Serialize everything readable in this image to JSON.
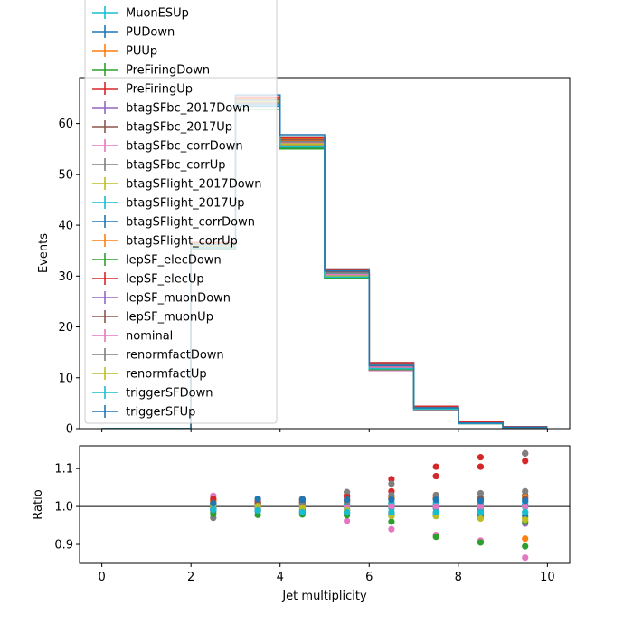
{
  "chart_data": [
    {
      "type": "line",
      "panel": "main",
      "drawstyle": "steps-post",
      "ylabel": "Events",
      "xlim": [
        -0.5,
        10.5
      ],
      "ylim": [
        0,
        69
      ],
      "yticks": [
        0,
        10,
        20,
        30,
        40,
        50,
        60
      ],
      "grid": false,
      "legend": "upper-left",
      "bin_edges": [
        0,
        1,
        2,
        3,
        4,
        5,
        6,
        7,
        8,
        9,
        10
      ],
      "series": [
        {
          "name": "MuonESUp",
          "color": "#17becf",
          "values": [
            0,
            0,
            36.0,
            64.3,
            56.0,
            30.2,
            12.0,
            4.0,
            1.1,
            0.3
          ]
        },
        {
          "name": "PUDown",
          "color": "#1f77b4",
          "values": [
            0,
            0,
            35.6,
            64.4,
            56.3,
            30.4,
            12.2,
            4.0,
            1.1,
            0.3
          ]
        },
        {
          "name": "PUUp",
          "color": "#ff7f0e",
          "values": [
            0,
            0,
            36.2,
            64.8,
            56.6,
            30.7,
            12.4,
            4.1,
            1.1,
            0.3
          ]
        },
        {
          "name": "PreFiringDown",
          "color": "#2ca02c",
          "values": [
            0,
            0,
            35.4,
            63.6,
            55.2,
            29.6,
            11.8,
            3.9,
            1.0,
            0.3
          ]
        },
        {
          "name": "PreFiringUp",
          "color": "#d62728",
          "values": [
            0,
            0,
            36.4,
            65.0,
            57.0,
            31.2,
            13.0,
            4.4,
            1.3,
            0.4
          ]
        },
        {
          "name": "btagSFbc_2017Down",
          "color": "#9467bd",
          "values": [
            0,
            0,
            35.8,
            64.2,
            56.2,
            30.4,
            12.2,
            4.0,
            1.1,
            0.3
          ]
        },
        {
          "name": "btagSFbc_2017Up",
          "color": "#8c564b",
          "values": [
            0,
            0,
            36.0,
            64.6,
            56.8,
            30.8,
            12.4,
            4.1,
            1.1,
            0.3
          ]
        },
        {
          "name": "btagSFbc_corrDown",
          "color": "#e377c2",
          "values": [
            0,
            0,
            36.6,
            64.4,
            56.0,
            29.6,
            11.4,
            3.7,
            1.0,
            0.3
          ]
        },
        {
          "name": "btagSFbc_corrUp",
          "color": "#7f7f7f",
          "values": [
            0,
            0,
            35.4,
            64.8,
            57.4,
            31.4,
            12.9,
            4.3,
            1.2,
            0.4
          ]
        },
        {
          "name": "btagSFlight_2017Down",
          "color": "#bcbd22",
          "values": [
            0,
            0,
            35.8,
            63.8,
            55.8,
            30.0,
            11.9,
            3.9,
            1.0,
            0.3
          ]
        },
        {
          "name": "btagSFlight_2017Up",
          "color": "#17becf",
          "values": [
            0,
            0,
            36.0,
            64.4,
            56.4,
            30.5,
            12.2,
            4.0,
            1.1,
            0.3
          ]
        },
        {
          "name": "btagSFlight_corrDown",
          "color": "#1f77b4",
          "values": [
            0,
            0,
            35.6,
            63.4,
            55.4,
            29.8,
            11.9,
            3.9,
            1.0,
            0.3
          ]
        },
        {
          "name": "btagSFlight_corrUp",
          "color": "#ff7f0e",
          "values": [
            0,
            0,
            36.4,
            64.9,
            56.9,
            30.9,
            12.4,
            4.1,
            1.1,
            0.3
          ]
        },
        {
          "name": "lepSF_elecDown",
          "color": "#2ca02c",
          "values": [
            0,
            0,
            35.2,
            62.8,
            55.0,
            29.6,
            11.6,
            3.8,
            1.0,
            0.3
          ]
        },
        {
          "name": "lepSF_elecUp",
          "color": "#d62728",
          "values": [
            0,
            0,
            36.6,
            65.2,
            57.2,
            31.0,
            12.8,
            4.3,
            1.2,
            0.4
          ]
        },
        {
          "name": "lepSF_muonDown",
          "color": "#9467bd",
          "values": [
            0,
            0,
            35.6,
            63.8,
            55.6,
            30.0,
            11.9,
            3.9,
            1.0,
            0.3
          ]
        },
        {
          "name": "lepSF_muonUp",
          "color": "#8c564b",
          "values": [
            0,
            0,
            36.2,
            64.8,
            56.8,
            30.8,
            12.3,
            4.1,
            1.1,
            0.3
          ]
        },
        {
          "name": "nominal",
          "color": "#e377c2",
          "values": [
            0,
            0,
            35.9,
            64.2,
            56.2,
            30.3,
            12.1,
            4.0,
            1.1,
            0.3
          ]
        },
        {
          "name": "renormfactDown",
          "color": "#7f7f7f",
          "values": [
            0,
            0,
            35.8,
            64.0,
            56.4,
            30.6,
            12.5,
            4.1,
            1.1,
            0.3
          ]
        },
        {
          "name": "renormfactUp",
          "color": "#bcbd22",
          "values": [
            0,
            0,
            36.0,
            64.3,
            56.0,
            30.0,
            11.8,
            3.9,
            1.0,
            0.3
          ]
        },
        {
          "name": "triggerSFDown",
          "color": "#17becf",
          "values": [
            0,
            0,
            35.6,
            63.6,
            55.4,
            29.8,
            11.8,
            3.9,
            1.0,
            0.3
          ]
        },
        {
          "name": "triggerSFUp",
          "color": "#1f77b4",
          "values": [
            0,
            0,
            36.2,
            65.6,
            57.8,
            31.0,
            12.4,
            4.1,
            1.1,
            0.3
          ]
        }
      ]
    },
    {
      "type": "scatter",
      "panel": "ratio",
      "xlabel": "Jet multiplicity",
      "ylabel": "Ratio",
      "xlim": [
        -0.5,
        10.5
      ],
      "ylim": [
        0.85,
        1.16
      ],
      "xticks": [
        0,
        2,
        4,
        6,
        8,
        10
      ],
      "yticks": [
        0.9,
        1.0,
        1.1
      ],
      "reference_line": 1.0,
      "x": [
        2.5,
        3.5,
        4.5,
        5.5,
        6.5,
        7.5,
        8.5,
        9.5
      ],
      "series": [
        {
          "name": "MuonESUp",
          "color": "#17becf",
          "values": [
            1.003,
            1.001,
            0.997,
            0.997,
            0.995,
            0.998,
            0.998,
            0.998
          ]
        },
        {
          "name": "PUDown",
          "color": "#1f77b4",
          "values": [
            0.992,
            1.003,
            1.002,
            1.003,
            1.008,
            1.005,
            1.005,
            1.005
          ]
        },
        {
          "name": "PUUp",
          "color": "#ff7f0e",
          "values": [
            1.008,
            1.009,
            1.007,
            1.013,
            1.025,
            1.03,
            1.01,
            0.915
          ]
        },
        {
          "name": "PreFiringDown",
          "color": "#2ca02c",
          "values": [
            0.986,
            0.99,
            0.982,
            0.977,
            0.975,
            0.975,
            0.97,
            0.895
          ]
        },
        {
          "name": "PreFiringUp",
          "color": "#d62728",
          "values": [
            1.014,
            1.012,
            1.014,
            1.03,
            1.072,
            1.105,
            1.13,
            1.14
          ]
        },
        {
          "name": "btagSFbc_2017Down",
          "color": "#9467bd",
          "values": [
            0.997,
            1.0,
            1.0,
            1.003,
            1.008,
            0.995,
            0.99,
            0.955
          ]
        },
        {
          "name": "btagSFbc_2017Up",
          "color": "#8c564b",
          "values": [
            1.003,
            1.006,
            1.01,
            1.016,
            1.02,
            1.02,
            1.02,
            1.03
          ]
        },
        {
          "name": "btagSFbc_corrDown",
          "color": "#e377c2",
          "values": [
            1.028,
            1.003,
            0.996,
            0.962,
            0.94,
            0.925,
            0.91,
            0.865
          ]
        },
        {
          "name": "btagSFbc_corrUp",
          "color": "#7f7f7f",
          "values": [
            0.97,
            1.01,
            1.02,
            1.038,
            1.06,
            1.08,
            1.105,
            1.14
          ]
        },
        {
          "name": "btagSFlight_2017Down",
          "color": "#bcbd22",
          "values": [
            0.997,
            0.994,
            0.993,
            0.99,
            0.985,
            0.98,
            0.975,
            0.97
          ]
        },
        {
          "name": "btagSFlight_2017Up",
          "color": "#17becf",
          "values": [
            1.003,
            1.003,
            1.004,
            1.007,
            1.01,
            1.01,
            1.012,
            1.012
          ]
        },
        {
          "name": "btagSFlight_corrDown",
          "color": "#1f77b4",
          "values": [
            0.991,
            0.988,
            0.986,
            0.983,
            0.98,
            0.98,
            0.978,
            0.976
          ]
        },
        {
          "name": "btagSFlight_corrUp",
          "color": "#ff7f0e",
          "values": [
            1.013,
            1.011,
            1.012,
            1.019,
            1.025,
            1.025,
            1.025,
            1.025
          ]
        },
        {
          "name": "lepSF_elecDown",
          "color": "#2ca02c",
          "values": [
            0.98,
            0.978,
            0.979,
            0.977,
            0.96,
            0.92,
            0.905,
            0.96
          ]
        },
        {
          "name": "lepSF_elecUp",
          "color": "#d62728",
          "values": [
            1.02,
            1.015,
            1.018,
            1.025,
            1.04,
            1.08,
            1.105,
            1.12
          ]
        },
        {
          "name": "lepSF_muonDown",
          "color": "#9467bd",
          "values": [
            0.991,
            0.993,
            0.99,
            0.99,
            0.985,
            0.985,
            0.985,
            0.985
          ]
        },
        {
          "name": "lepSF_muonUp",
          "color": "#8c564b",
          "values": [
            1.009,
            1.009,
            1.01,
            1.015,
            1.02,
            1.02,
            1.02,
            1.02
          ]
        },
        {
          "name": "nominal",
          "color": "#e377c2",
          "values": [
            1.0,
            1.0,
            1.0,
            1.0,
            1.0,
            1.0,
            1.0,
            1.0
          ]
        },
        {
          "name": "renormfactDown",
          "color": "#7f7f7f",
          "values": [
            0.997,
            0.998,
            1.004,
            1.012,
            1.03,
            1.03,
            1.035,
            1.04
          ]
        },
        {
          "name": "renormfactUp",
          "color": "#bcbd22",
          "values": [
            1.003,
            1.001,
            0.997,
            0.99,
            0.975,
            0.975,
            0.968,
            0.965
          ]
        },
        {
          "name": "triggerSFDown",
          "color": "#17becf",
          "values": [
            0.992,
            0.99,
            0.985,
            0.985,
            0.985,
            0.985,
            0.985,
            0.985
          ]
        },
        {
          "name": "triggerSFUp",
          "color": "#1f77b4",
          "values": [
            1.008,
            1.02,
            1.018,
            1.018,
            1.018,
            1.018,
            1.015,
            1.015
          ]
        }
      ]
    }
  ]
}
